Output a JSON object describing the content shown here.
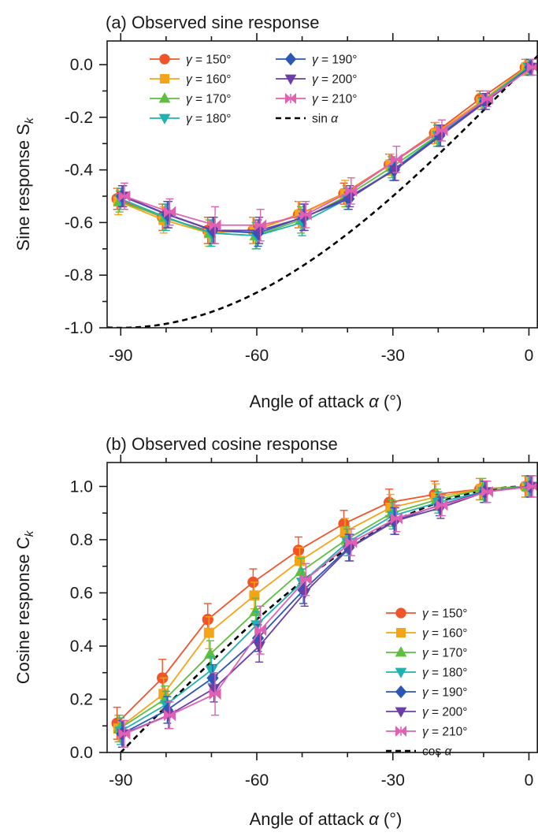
{
  "chart_data": [
    {
      "type": "line",
      "title": "(a) Observed sine response",
      "xlabel": "Angle of attack α (°)",
      "ylabel": "Sine response S",
      "ylabel_sub": "k",
      "xlim": [
        -93,
        2
      ],
      "ylim": [
        -1.0,
        0.09
      ],
      "x_ticks": [
        -90,
        -60,
        -30,
        0
      ],
      "x_tick_labels": [
        "-90",
        "-60",
        "-30",
        "0"
      ],
      "y_ticks": [
        -1.0,
        -0.8,
        -0.6,
        -0.4,
        -0.2,
        0.0
      ],
      "y_tick_labels": [
        "-1.0",
        "-0.8",
        "-0.6",
        "-0.4",
        "-0.2",
        "0.0"
      ],
      "x": [
        -90,
        -80,
        -70,
        -60,
        -50,
        -40,
        -30,
        -20,
        -10,
        0
      ],
      "legend_position": "top-left",
      "legend_columns": 2,
      "series": [
        {
          "name": "γ = 150°",
          "color": "#f0552a",
          "marker": "circle",
          "values": [
            -0.51,
            -0.58,
            -0.63,
            -0.63,
            -0.57,
            -0.49,
            -0.38,
            -0.26,
            -0.13,
            -0.01
          ],
          "errors": [
            0.04,
            0.05,
            0.05,
            0.05,
            0.05,
            0.04,
            0.04,
            0.04,
            0.03,
            0.03
          ]
        },
        {
          "name": "γ = 160°",
          "color": "#f5a418",
          "marker": "square",
          "values": [
            -0.52,
            -0.59,
            -0.64,
            -0.63,
            -0.57,
            -0.49,
            -0.38,
            -0.26,
            -0.14,
            -0.01
          ],
          "errors": [
            0.05,
            0.05,
            0.05,
            0.05,
            0.05,
            0.05,
            0.04,
            0.04,
            0.03,
            0.03
          ]
        },
        {
          "name": "γ = 170°",
          "color": "#5dbf3e",
          "marker": "triangle-up",
          "values": [
            -0.52,
            -0.58,
            -0.64,
            -0.65,
            -0.59,
            -0.5,
            -0.39,
            -0.27,
            -0.14,
            -0.01
          ],
          "errors": [
            0.04,
            0.05,
            0.05,
            0.05,
            0.05,
            0.04,
            0.04,
            0.04,
            0.03,
            0.03
          ]
        },
        {
          "name": "γ = 180°",
          "color": "#1fb2b0",
          "marker": "triangle-down",
          "values": [
            -0.51,
            -0.58,
            -0.64,
            -0.65,
            -0.6,
            -0.51,
            -0.4,
            -0.27,
            -0.14,
            -0.01
          ],
          "errors": [
            0.04,
            0.05,
            0.05,
            0.05,
            0.05,
            0.04,
            0.04,
            0.04,
            0.03,
            0.03
          ]
        },
        {
          "name": "γ = 190°",
          "color": "#2c57b7",
          "marker": "diamond",
          "values": [
            -0.5,
            -0.57,
            -0.63,
            -0.64,
            -0.58,
            -0.51,
            -0.4,
            -0.27,
            -0.14,
            -0.01
          ],
          "errors": [
            0.04,
            0.05,
            0.05,
            0.05,
            0.05,
            0.04,
            0.04,
            0.04,
            0.03,
            0.03
          ]
        },
        {
          "name": "γ = 200°",
          "color": "#6b3fa8",
          "marker": "triangle-down",
          "values": [
            -0.5,
            -0.57,
            -0.63,
            -0.63,
            -0.58,
            -0.5,
            -0.4,
            -0.27,
            -0.14,
            -0.01
          ],
          "errors": [
            0.04,
            0.05,
            0.05,
            0.05,
            0.05,
            0.04,
            0.04,
            0.04,
            0.03,
            0.03
          ]
        },
        {
          "name": "γ = 210°",
          "color": "#e061b3",
          "marker": "bowtie",
          "values": [
            -0.5,
            -0.56,
            -0.61,
            -0.61,
            -0.57,
            -0.48,
            -0.36,
            -0.25,
            -0.13,
            -0.01
          ],
          "errors": [
            0.05,
            0.05,
            0.07,
            0.06,
            0.05,
            0.05,
            0.05,
            0.04,
            0.03,
            0.03
          ]
        }
      ],
      "reference_curve": {
        "name": "sin α",
        "function": "sin",
        "style": "dashed",
        "color": "#000000"
      }
    },
    {
      "type": "line",
      "title": "(b) Observed cosine response",
      "xlabel": "Angle of attack α (°)",
      "ylabel": "Cosine response C",
      "ylabel_sub": "k",
      "xlim": [
        -93,
        2
      ],
      "ylim": [
        0.0,
        1.09
      ],
      "x_ticks": [
        -90,
        -60,
        -30,
        0
      ],
      "x_tick_labels": [
        "-90",
        "-60",
        "-30",
        "0"
      ],
      "y_ticks": [
        0.0,
        0.2,
        0.4,
        0.6,
        0.8,
        1.0
      ],
      "y_tick_labels": [
        "0.0",
        "0.2",
        "0.4",
        "0.6",
        "0.8",
        "1.0"
      ],
      "x": [
        -90,
        -80,
        -70,
        -60,
        -50,
        -40,
        -30,
        -20,
        -10,
        0
      ],
      "legend_position": "bottom-right",
      "legend_columns": 1,
      "series": [
        {
          "name": "γ = 150°",
          "color": "#f0552a",
          "marker": "circle",
          "values": [
            0.11,
            0.28,
            0.5,
            0.64,
            0.76,
            0.86,
            0.94,
            0.97,
            0.99,
            1.0
          ],
          "errors": [
            0.06,
            0.07,
            0.06,
            0.05,
            0.05,
            0.05,
            0.05,
            0.05,
            0.04,
            0.04
          ]
        },
        {
          "name": "γ = 160°",
          "color": "#f5a418",
          "marker": "square",
          "values": [
            0.09,
            0.22,
            0.45,
            0.59,
            0.72,
            0.83,
            0.92,
            0.96,
            0.99,
            1.0
          ],
          "errors": [
            0.05,
            0.06,
            0.06,
            0.05,
            0.05,
            0.05,
            0.05,
            0.05,
            0.04,
            0.04
          ]
        },
        {
          "name": "γ = 170°",
          "color": "#5dbf3e",
          "marker": "triangle-up",
          "values": [
            0.09,
            0.2,
            0.37,
            0.53,
            0.68,
            0.8,
            0.9,
            0.95,
            0.99,
            1.0
          ],
          "errors": [
            0.05,
            0.05,
            0.05,
            0.05,
            0.05,
            0.05,
            0.05,
            0.04,
            0.04,
            0.04
          ]
        },
        {
          "name": "γ = 180°",
          "color": "#1fb2b0",
          "marker": "triangle-down",
          "values": [
            0.08,
            0.18,
            0.31,
            0.48,
            0.64,
            0.79,
            0.89,
            0.94,
            0.98,
            1.0
          ],
          "errors": [
            0.05,
            0.05,
            0.05,
            0.05,
            0.05,
            0.05,
            0.05,
            0.04,
            0.04,
            0.04
          ]
        },
        {
          "name": "γ = 190°",
          "color": "#2c57b7",
          "marker": "diamond",
          "values": [
            0.07,
            0.16,
            0.28,
            0.43,
            0.61,
            0.77,
            0.87,
            0.93,
            0.98,
            1.0
          ],
          "errors": [
            0.05,
            0.05,
            0.05,
            0.05,
            0.05,
            0.05,
            0.05,
            0.04,
            0.04,
            0.04
          ]
        },
        {
          "name": "γ = 200°",
          "color": "#6b3fa8",
          "marker": "triangle-down",
          "values": [
            0.07,
            0.14,
            0.24,
            0.4,
            0.6,
            0.77,
            0.87,
            0.92,
            0.98,
            1.0
          ],
          "errors": [
            0.05,
            0.05,
            0.05,
            0.06,
            0.05,
            0.05,
            0.05,
            0.04,
            0.04,
            0.04
          ]
        },
        {
          "name": "γ = 210°",
          "color": "#e061b3",
          "marker": "bowtie",
          "values": [
            0.07,
            0.14,
            0.22,
            0.46,
            0.65,
            0.79,
            0.88,
            0.93,
            0.98,
            1.0
          ],
          "errors": [
            0.05,
            0.05,
            0.08,
            0.09,
            0.06,
            0.05,
            0.05,
            0.04,
            0.04,
            0.04
          ]
        }
      ],
      "reference_curve": {
        "name": "cos α",
        "function": "cos",
        "style": "dashed",
        "color": "#000000"
      }
    }
  ]
}
